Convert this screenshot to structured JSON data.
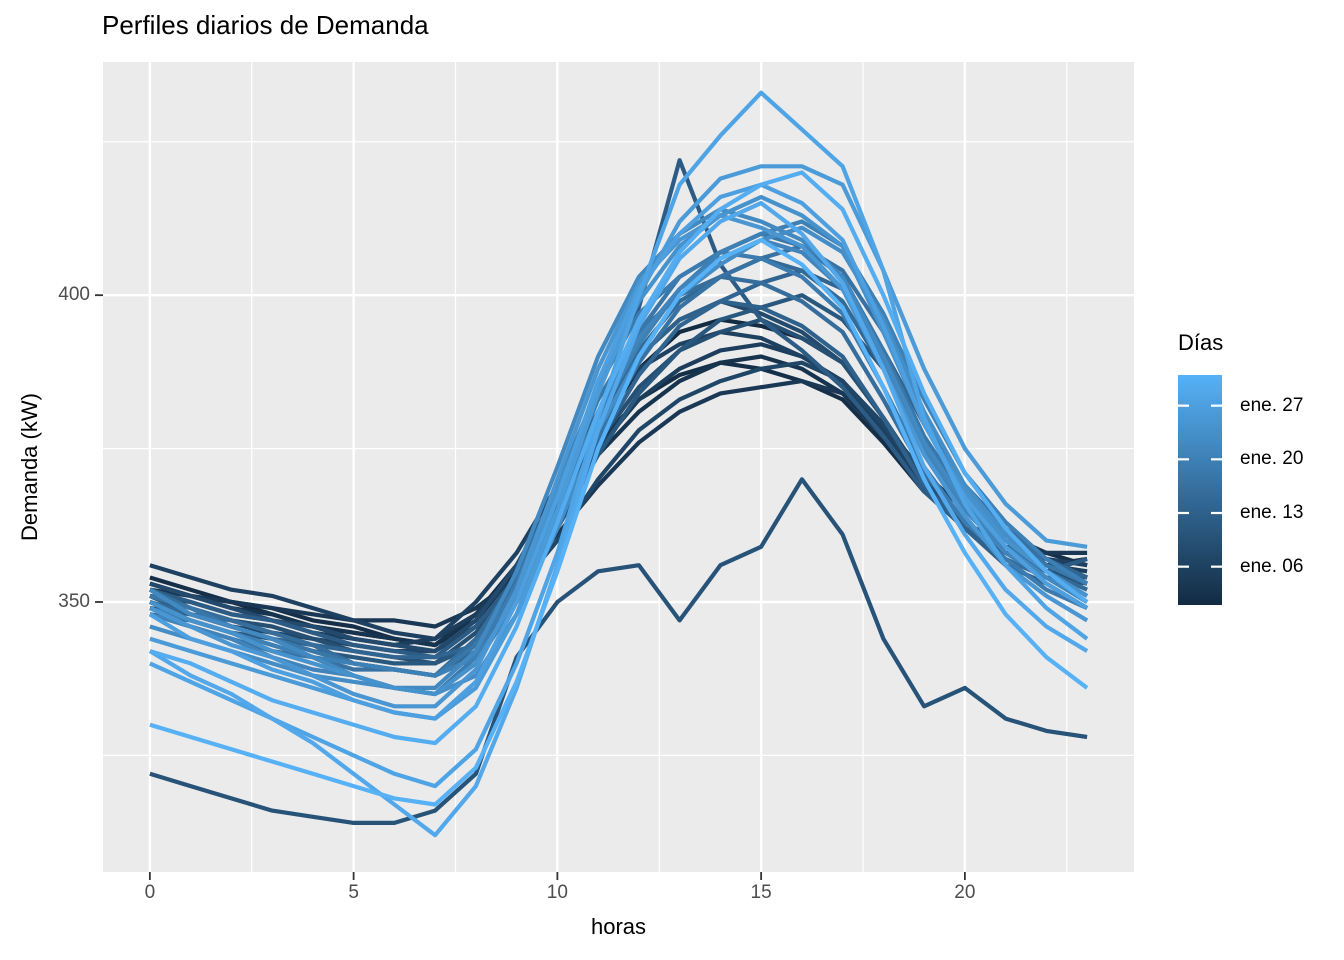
{
  "chart_data": {
    "type": "line",
    "title": "Perfiles diarios de Demanda",
    "xlabel": "horas",
    "ylabel": "Demanda (kW)",
    "x": [
      0,
      1,
      2,
      3,
      4,
      5,
      6,
      7,
      8,
      9,
      10,
      11,
      12,
      13,
      14,
      15,
      16,
      17,
      18,
      19,
      20,
      21,
      22,
      23
    ],
    "x_ticks": [
      0,
      5,
      10,
      15,
      20
    ],
    "x_minor": [
      2.5,
      7.5,
      12.5,
      17.5,
      22.5
    ],
    "y_ticks": [
      350,
      400
    ],
    "y_minor": [
      325,
      375,
      425
    ],
    "xlim": [
      -1.15,
      24.15
    ],
    "ylim": [
      306,
      438
    ],
    "grid": "on",
    "legend_position": "right",
    "colors": {
      "panel_bg": "#EBEBEB",
      "grid": "#FFFFFF",
      "tick": "#333333",
      "tick_label": "#4D4D4D",
      "text": "#000000",
      "gradient_low": "#132B43",
      "gradient_high": "#56B1F7"
    },
    "legend": {
      "title": "Días",
      "domain_days": [
        1,
        31
      ],
      "breaks": [
        {
          "label": "ene. 27",
          "day": 27
        },
        {
          "label": "ene. 20",
          "day": 20
        },
        {
          "label": "ene. 13",
          "day": 13
        },
        {
          "label": "ene. 06",
          "day": 6
        }
      ]
    },
    "series": [
      {
        "day": 1,
        "label": "ene. 01",
        "values": [
          353,
          351,
          350,
          348,
          346,
          345,
          344,
          343,
          347,
          355,
          366,
          378,
          388,
          394,
          396,
          395,
          393,
          389,
          380,
          370,
          363,
          359,
          356,
          354
        ]
      },
      {
        "day": 2,
        "label": "ene. 02",
        "values": [
          354,
          352,
          350,
          349,
          347,
          346,
          344,
          343,
          348,
          356,
          366,
          376,
          383,
          387,
          389,
          388,
          386,
          383,
          376,
          368,
          363,
          359,
          358,
          356
        ]
      },
      {
        "day": 3,
        "label": "ene. 03",
        "values": [
          353,
          351,
          349,
          348,
          346,
          345,
          344,
          343,
          348,
          354,
          364,
          374,
          381,
          386,
          389,
          390,
          388,
          384,
          377,
          369,
          362,
          358,
          356,
          357
        ]
      },
      {
        "day": 4,
        "label": "ene. 04",
        "values": [
          352,
          351,
          350,
          349,
          348,
          347,
          347,
          346,
          349,
          354,
          361,
          369,
          376,
          381,
          384,
          385,
          386,
          384,
          379,
          371,
          365,
          361,
          358,
          358
        ]
      },
      {
        "day": 5,
        "label": "ene. 05",
        "values": [
          351,
          350,
          348,
          347,
          345,
          344,
          343,
          344,
          348,
          354,
          364,
          375,
          383,
          388,
          391,
          392,
          390,
          386,
          378,
          369,
          362,
          358,
          356,
          355
        ]
      },
      {
        "day": 6,
        "label": "ene. 06",
        "values": [
          356,
          354,
          352,
          351,
          349,
          347,
          345,
          344,
          350,
          358,
          369,
          380,
          388,
          392,
          394,
          393,
          390,
          386,
          378,
          369,
          363,
          359,
          357,
          356
        ]
      },
      {
        "day": 7,
        "label": "ene. 07",
        "values": [
          349,
          348,
          346,
          345,
          344,
          343,
          342,
          342,
          346,
          352,
          360,
          370,
          378,
          383,
          386,
          388,
          389,
          386,
          379,
          370,
          363,
          358,
          355,
          354
        ]
      },
      {
        "day": 8,
        "label": "ene. 08",
        "values": [
          353,
          351,
          349,
          347,
          346,
          344,
          343,
          342,
          347,
          356,
          368,
          381,
          390,
          396,
          399,
          397,
          394,
          389,
          380,
          370,
          363,
          358,
          355,
          353
        ]
      },
      {
        "day": 9,
        "label": "ene. 09",
        "values": [
          351,
          349,
          347,
          346,
          344,
          342,
          341,
          340,
          345,
          353,
          364,
          376,
          385,
          391,
          394,
          396,
          393,
          389,
          380,
          370,
          362,
          357,
          354,
          353
        ]
      },
      {
        "day": 10,
        "label": "ene. 10",
        "values": [
          322,
          320,
          318,
          316,
          315,
          314,
          314,
          316,
          322,
          341,
          350,
          355,
          356,
          347,
          356,
          359,
          370,
          361,
          344,
          333,
          336,
          331,
          329,
          328
        ]
      },
      {
        "day": 11,
        "label": "ene. 11",
        "values": [
          348,
          347,
          345,
          344,
          342,
          341,
          340,
          340,
          343,
          351,
          362,
          374,
          384,
          391,
          396,
          398,
          400,
          396,
          388,
          376,
          367,
          361,
          357,
          354
        ]
      },
      {
        "day": 12,
        "label": "ene. 12",
        "values": [
          352,
          350,
          348,
          347,
          345,
          343,
          342,
          341,
          346,
          354,
          368,
          385,
          398,
          422,
          405,
          396,
          391,
          385,
          377,
          368,
          362,
          358,
          355,
          357
        ]
      },
      {
        "day": 13,
        "label": "ene. 13",
        "values": [
          351,
          348,
          346,
          344,
          343,
          340,
          339,
          338,
          343,
          353,
          367,
          380,
          390,
          396,
          399,
          398,
          395,
          390,
          380,
          369,
          362,
          356,
          353,
          349
        ]
      },
      {
        "day": 14,
        "label": "ene. 14",
        "values": [
          350,
          348,
          347,
          345,
          343,
          342,
          341,
          341,
          343,
          351,
          363,
          376,
          387,
          395,
          399,
          402,
          404,
          401,
          391,
          379,
          369,
          362,
          357,
          354
        ]
      },
      {
        "day": 15,
        "label": "ene. 15",
        "values": [
          350,
          348,
          346,
          344,
          342,
          340,
          339,
          338,
          342,
          351,
          365,
          380,
          391,
          399,
          403,
          406,
          404,
          399,
          388,
          375,
          365,
          359,
          355,
          352
        ]
      },
      {
        "day": 16,
        "label": "ene. 16",
        "values": [
          352,
          349,
          347,
          345,
          343,
          340,
          339,
          338,
          344,
          354,
          369,
          383,
          394,
          400,
          403,
          402,
          399,
          394,
          383,
          371,
          363,
          357,
          354,
          350
        ]
      },
      {
        "day": 17,
        "label": "ene. 17",
        "values": [
          348,
          346,
          344,
          342,
          341,
          339,
          339,
          338,
          341,
          350,
          363,
          377,
          389,
          398,
          403,
          406,
          408,
          404,
          394,
          380,
          369,
          362,
          356,
          353
        ]
      },
      {
        "day": 18,
        "label": "ene. 18",
        "values": [
          351,
          349,
          346,
          344,
          342,
          340,
          339,
          338,
          343,
          352,
          367,
          383,
          394,
          403,
          407,
          410,
          408,
          403,
          391,
          377,
          367,
          360,
          356,
          353
        ]
      },
      {
        "day": 19,
        "label": "ene. 19",
        "values": [
          350,
          347,
          345,
          343,
          341,
          338,
          336,
          335,
          341,
          353,
          369,
          385,
          397,
          403,
          407,
          406,
          403,
          397,
          385,
          372,
          363,
          357,
          352,
          349
        ]
      },
      {
        "day": 20,
        "label": "ene. 20",
        "values": [
          349,
          347,
          345,
          343,
          341,
          340,
          339,
          338,
          341,
          350,
          364,
          380,
          392,
          401,
          407,
          410,
          412,
          408,
          397,
          383,
          371,
          363,
          357,
          353
        ]
      },
      {
        "day": 21,
        "label": "ene. 21",
        "values": [
          348,
          346,
          344,
          341,
          339,
          338,
          336,
          335,
          340,
          350,
          365,
          381,
          393,
          401,
          406,
          409,
          407,
          401,
          389,
          375,
          365,
          358,
          354,
          350
        ]
      },
      {
        "day": 22,
        "label": "ene. 22",
        "values": [
          352,
          348,
          346,
          344,
          341,
          338,
          336,
          336,
          342,
          355,
          372,
          390,
          403,
          410,
          414,
          412,
          409,
          403,
          390,
          376,
          366,
          359,
          354,
          350
        ]
      },
      {
        "day": 23,
        "label": "ene. 23",
        "values": [
          346,
          344,
          342,
          340,
          338,
          337,
          336,
          335,
          338,
          348,
          362,
          378,
          390,
          400,
          405,
          409,
          411,
          407,
          396,
          381,
          369,
          361,
          355,
          351
        ]
      },
      {
        "day": 24,
        "label": "ene. 24",
        "values": [
          350,
          347,
          345,
          342,
          340,
          338,
          336,
          335,
          340,
          351,
          368,
          385,
          399,
          408,
          413,
          416,
          413,
          408,
          394,
          379,
          368,
          360,
          355,
          351
        ]
      },
      {
        "day": 25,
        "label": "ene. 25",
        "values": [
          349,
          346,
          343,
          341,
          338,
          335,
          333,
          333,
          339,
          352,
          370,
          388,
          402,
          409,
          413,
          411,
          408,
          401,
          388,
          374,
          364,
          356,
          351,
          347
        ]
      },
      {
        "day": 26,
        "label": "ene. 26",
        "values": [
          344,
          342,
          340,
          338,
          336,
          334,
          332,
          331,
          336,
          348,
          365,
          384,
          400,
          412,
          419,
          421,
          421,
          418,
          404,
          388,
          375,
          366,
          360,
          359
        ]
      },
      {
        "day": 27,
        "label": "ene. 27",
        "values": [
          348,
          344,
          342,
          339,
          337,
          334,
          332,
          331,
          337,
          350,
          367,
          386,
          401,
          410,
          416,
          418,
          415,
          409,
          395,
          379,
          367,
          359,
          353,
          349
        ]
      },
      {
        "day": 28,
        "label": "ene. 28",
        "values": [
          340,
          337,
          334,
          331,
          328,
          325,
          322,
          320,
          326,
          340,
          358,
          380,
          400,
          418,
          426,
          433,
          427,
          421,
          404,
          380,
          366,
          356,
          349,
          344
        ]
      },
      {
        "day": 29,
        "label": "ene. 29",
        "values": [
          342,
          338,
          335,
          331,
          327,
          322,
          317,
          312,
          320,
          336,
          356,
          378,
          395,
          406,
          412,
          415,
          410,
          402,
          388,
          372,
          361,
          352,
          346,
          342
        ]
      },
      {
        "day": 30,
        "label": "ene. 30",
        "values": [
          342,
          340,
          337,
          334,
          332,
          330,
          328,
          327,
          333,
          346,
          363,
          381,
          396,
          407,
          414,
          418,
          420,
          414,
          400,
          384,
          371,
          362,
          355,
          350
        ]
      },
      {
        "day": 31,
        "label": "ene. 31",
        "values": [
          330,
          328,
          326,
          324,
          322,
          320,
          318,
          317,
          323,
          337,
          355,
          375,
          390,
          400,
          406,
          409,
          405,
          398,
          385,
          370,
          358,
          348,
          341,
          336
        ]
      }
    ]
  }
}
